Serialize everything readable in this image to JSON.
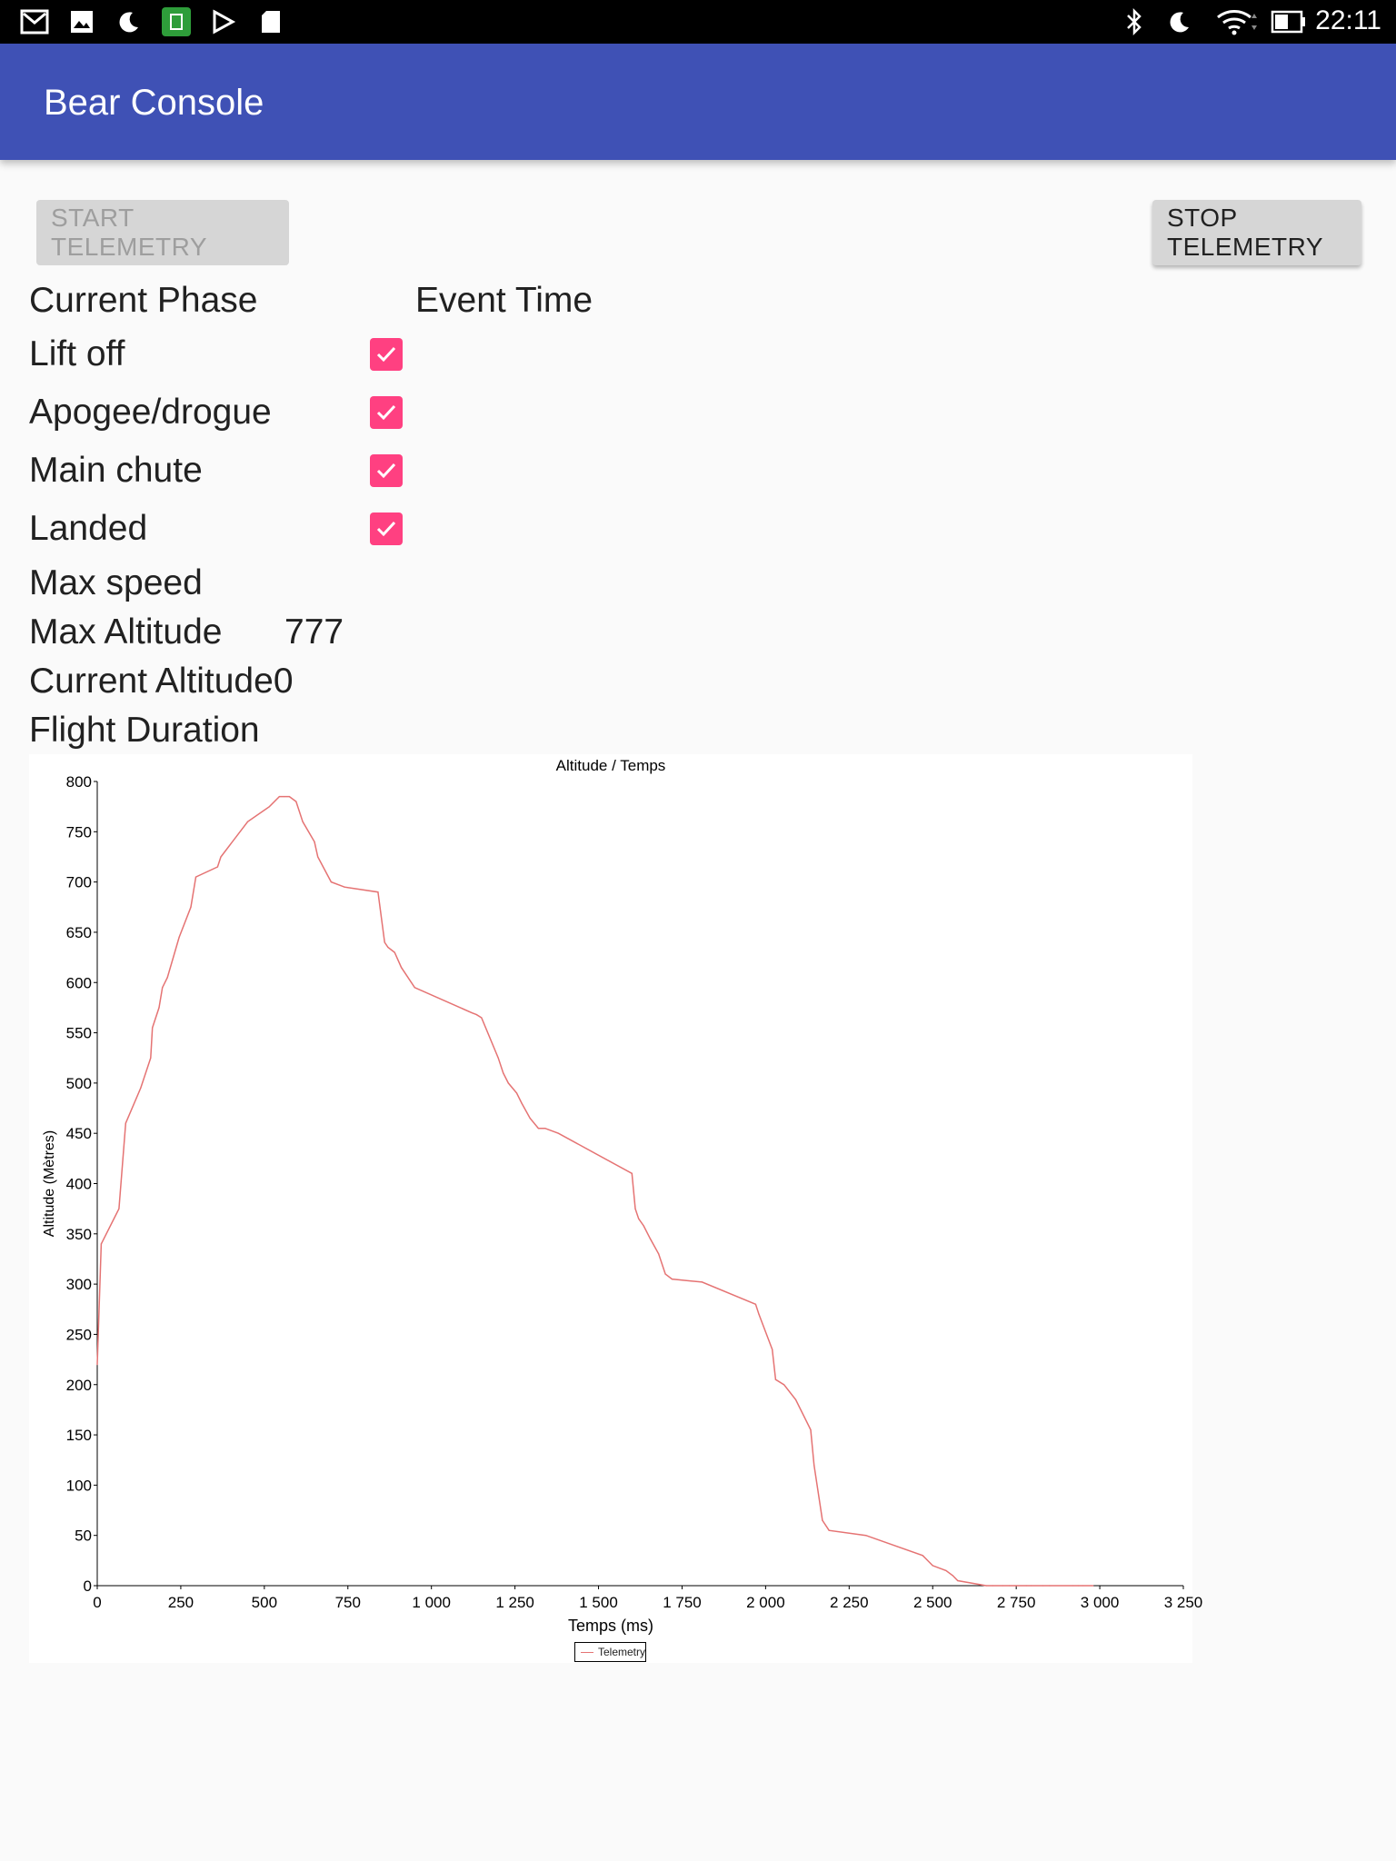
{
  "status_bar": {
    "time": "22:11",
    "left_icons": [
      "gmail-icon",
      "gallery-icon",
      "moon-icon",
      "app-icon",
      "play-icon",
      "sd-card-icon"
    ],
    "right_icons": [
      "bluetooth-icon",
      "moon-icon",
      "wifi-icon",
      "battery-icon"
    ]
  },
  "app_bar": {
    "title": "Bear Console",
    "color": "#3f51b5"
  },
  "buttons": {
    "start_label": "START TELEMETRY",
    "stop_label": "STOP TELEMETRY"
  },
  "headers": {
    "current_phase": "Current Phase",
    "event_time": "Event Time"
  },
  "phases": [
    {
      "label": "Lift off",
      "checked": true
    },
    {
      "label": "Apogee/drogue",
      "checked": true
    },
    {
      "label": "Main chute",
      "checked": true
    },
    {
      "label": "Landed",
      "checked": true
    }
  ],
  "stats": {
    "max_speed_label": "Max speed",
    "max_speed_value": "",
    "max_altitude_label": "Max Altitude",
    "max_altitude_value": "777",
    "current_altitude_label": "Current Altitude",
    "current_altitude_value": "0",
    "flight_duration_label": "Flight Duration",
    "flight_duration_value": ""
  },
  "accent_color": "#ff4081",
  "chart_data": {
    "type": "line",
    "title": "Altitude / Temps",
    "xlabel": "Temps (ms)",
    "ylabel": "Altitude (Mètres)",
    "xlim": [
      0,
      3250
    ],
    "ylim": [
      0,
      800
    ],
    "x_ticks": [
      "0",
      "250",
      "500",
      "750",
      "1 000",
      "1 250",
      "1 500",
      "1 750",
      "2 000",
      "2 250",
      "2 500",
      "2 750",
      "3 000",
      "3 250"
    ],
    "y_ticks": [
      "0",
      "50",
      "100",
      "150",
      "200",
      "250",
      "300",
      "350",
      "400",
      "450",
      "500",
      "550",
      "600",
      "650",
      "700",
      "750",
      "800"
    ],
    "legend": "bottom",
    "series": [
      {
        "name": "Telemetry",
        "color": "#e57373",
        "x": [
          0,
          12,
          65,
          85,
          130,
          160,
          165,
          185,
          195,
          210,
          245,
          280,
          295,
          360,
          370,
          450,
          515,
          545,
          560,
          575,
          595,
          615,
          650,
          660,
          700,
          740,
          840,
          860,
          870,
          890,
          910,
          950,
          1120,
          1135,
          1150,
          1200,
          1215,
          1230,
          1255,
          1270,
          1295,
          1320,
          1340,
          1380,
          1600,
          1610,
          1620,
          1635,
          1655,
          1680,
          1700,
          1720,
          1810,
          1970,
          1980,
          2020,
          2030,
          2055,
          2090,
          2135,
          2145,
          2170,
          2190,
          2300,
          2470,
          2500,
          2540,
          2560,
          2575,
          2660,
          2680,
          2710,
          2730,
          2745,
          2780,
          2795,
          2830,
          2850,
          2920,
          2935,
          2950,
          2980
        ],
        "y": [
          220,
          340,
          375,
          460,
          495,
          525,
          555,
          575,
          595,
          605,
          645,
          675,
          705,
          715,
          725,
          760,
          775,
          785,
          785,
          785,
          780,
          760,
          740,
          725,
          700,
          695,
          690,
          640,
          635,
          630,
          615,
          595,
          570,
          568,
          565,
          525,
          510,
          500,
          490,
          480,
          465,
          455,
          455,
          450,
          410,
          375,
          365,
          358,
          345,
          330,
          310,
          305,
          302,
          280,
          270,
          235,
          205,
          200,
          185,
          155,
          120,
          65,
          55,
          50,
          30,
          20,
          15,
          10,
          5,
          0,
          0,
          0,
          0,
          0,
          0,
          0,
          0,
          0,
          0,
          0,
          0,
          0
        ]
      }
    ]
  }
}
